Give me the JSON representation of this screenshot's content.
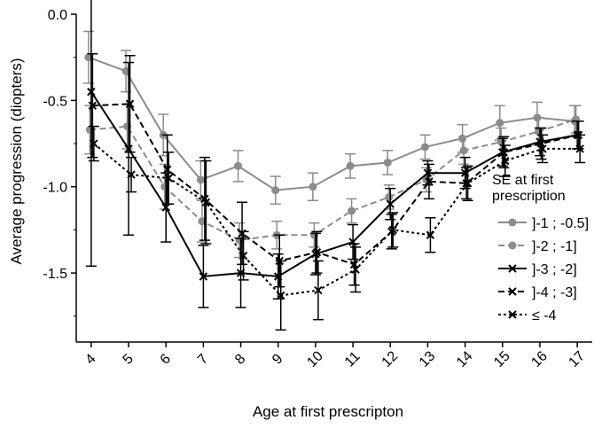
{
  "chart_data": {
    "type": "line",
    "xlabel": "Age at first prescripton",
    "ylabel": "Average progression (diopters)",
    "x": [
      4,
      5,
      6,
      7,
      8,
      9,
      10,
      11,
      12,
      13,
      14,
      15,
      16,
      17
    ],
    "xlim": [
      3.6,
      17.4
    ],
    "ylim": [
      -1.9,
      0
    ],
    "yticks": [
      "0.0",
      "-0.5",
      "-1.0",
      "-1.5"
    ],
    "yticks_values": [
      0,
      -0.5,
      -1.0,
      -1.5
    ],
    "legend": {
      "title_line1": "SE at first",
      "title_line2": "prescription",
      "placement": "right"
    },
    "series": [
      {
        "name": "]-1 ; -0.5]",
        "color": "#8c8c8c",
        "marker": "circle",
        "dash": "solid",
        "values": [
          -0.25,
          -0.33,
          -0.7,
          -0.96,
          -0.88,
          -1.02,
          -1.0,
          -0.88,
          -0.86,
          -0.77,
          -0.72,
          -0.63,
          -0.6,
          -0.62
        ],
        "errors": [
          0.15,
          0.12,
          0.12,
          0.11,
          0.09,
          0.08,
          0.08,
          0.07,
          0.07,
          0.07,
          0.08,
          0.1,
          0.09,
          0.09
        ]
      },
      {
        "name": "]-2 ; -1]",
        "color": "#8c8c8c",
        "marker": "circle",
        "dash": "dashed",
        "values": [
          -0.67,
          -0.65,
          -1.0,
          -1.2,
          -1.31,
          -1.28,
          -1.28,
          -1.14,
          -1.06,
          -0.96,
          -0.79,
          -0.74,
          -0.68,
          -0.61
        ],
        "errors": [
          0.14,
          0.13,
          0.13,
          0.12,
          0.1,
          0.08,
          0.07,
          0.07,
          0.07,
          0.07,
          0.08,
          0.08,
          0.08,
          0.08
        ]
      },
      {
        "name": "]-3 ; -2]",
        "color": "#000000",
        "marker": "x",
        "dash": "solid",
        "values": [
          -0.45,
          -0.78,
          -1.12,
          -1.52,
          -1.5,
          -1.52,
          -1.39,
          -1.32,
          -1.1,
          -0.92,
          -0.92,
          -0.8,
          -0.74,
          -0.7
        ],
        "errors": [
          1.01,
          0.5,
          0.2,
          0.18,
          0.2,
          0.13,
          0.12,
          0.1,
          0.09,
          0.07,
          0.09,
          0.08,
          0.08,
          0.08
        ]
      },
      {
        "name": "]-4 ; -3]",
        "color": "#000000",
        "marker": "x",
        "dash": "dashed",
        "values": [
          -0.53,
          -0.52,
          -0.9,
          -1.07,
          -1.27,
          -1.43,
          -1.38,
          -1.45,
          -1.26,
          -0.97,
          -0.98,
          -0.8,
          -0.75,
          -0.7
        ],
        "errors": [
          0.3,
          0.28,
          0.2,
          0.24,
          0.18,
          0.15,
          0.12,
          0.12,
          0.1,
          0.1,
          0.09,
          0.09,
          0.09,
          0.08
        ]
      },
      {
        "name": "≤ -4",
        "color": "#000000",
        "marker": "x",
        "dash": "dotted",
        "values": [
          -0.75,
          -0.93,
          -0.95,
          -1.09,
          -1.4,
          -1.63,
          -1.6,
          -1.48,
          -1.25,
          -1.28,
          -0.98,
          -0.85,
          -0.78,
          -0.78
        ],
        "errors": [
          0.1,
          0.1,
          0.15,
          0.24,
          0.14,
          0.2,
          0.17,
          0.13,
          0.1,
          0.1,
          0.1,
          0.09,
          0.08,
          0.08
        ]
      }
    ]
  }
}
